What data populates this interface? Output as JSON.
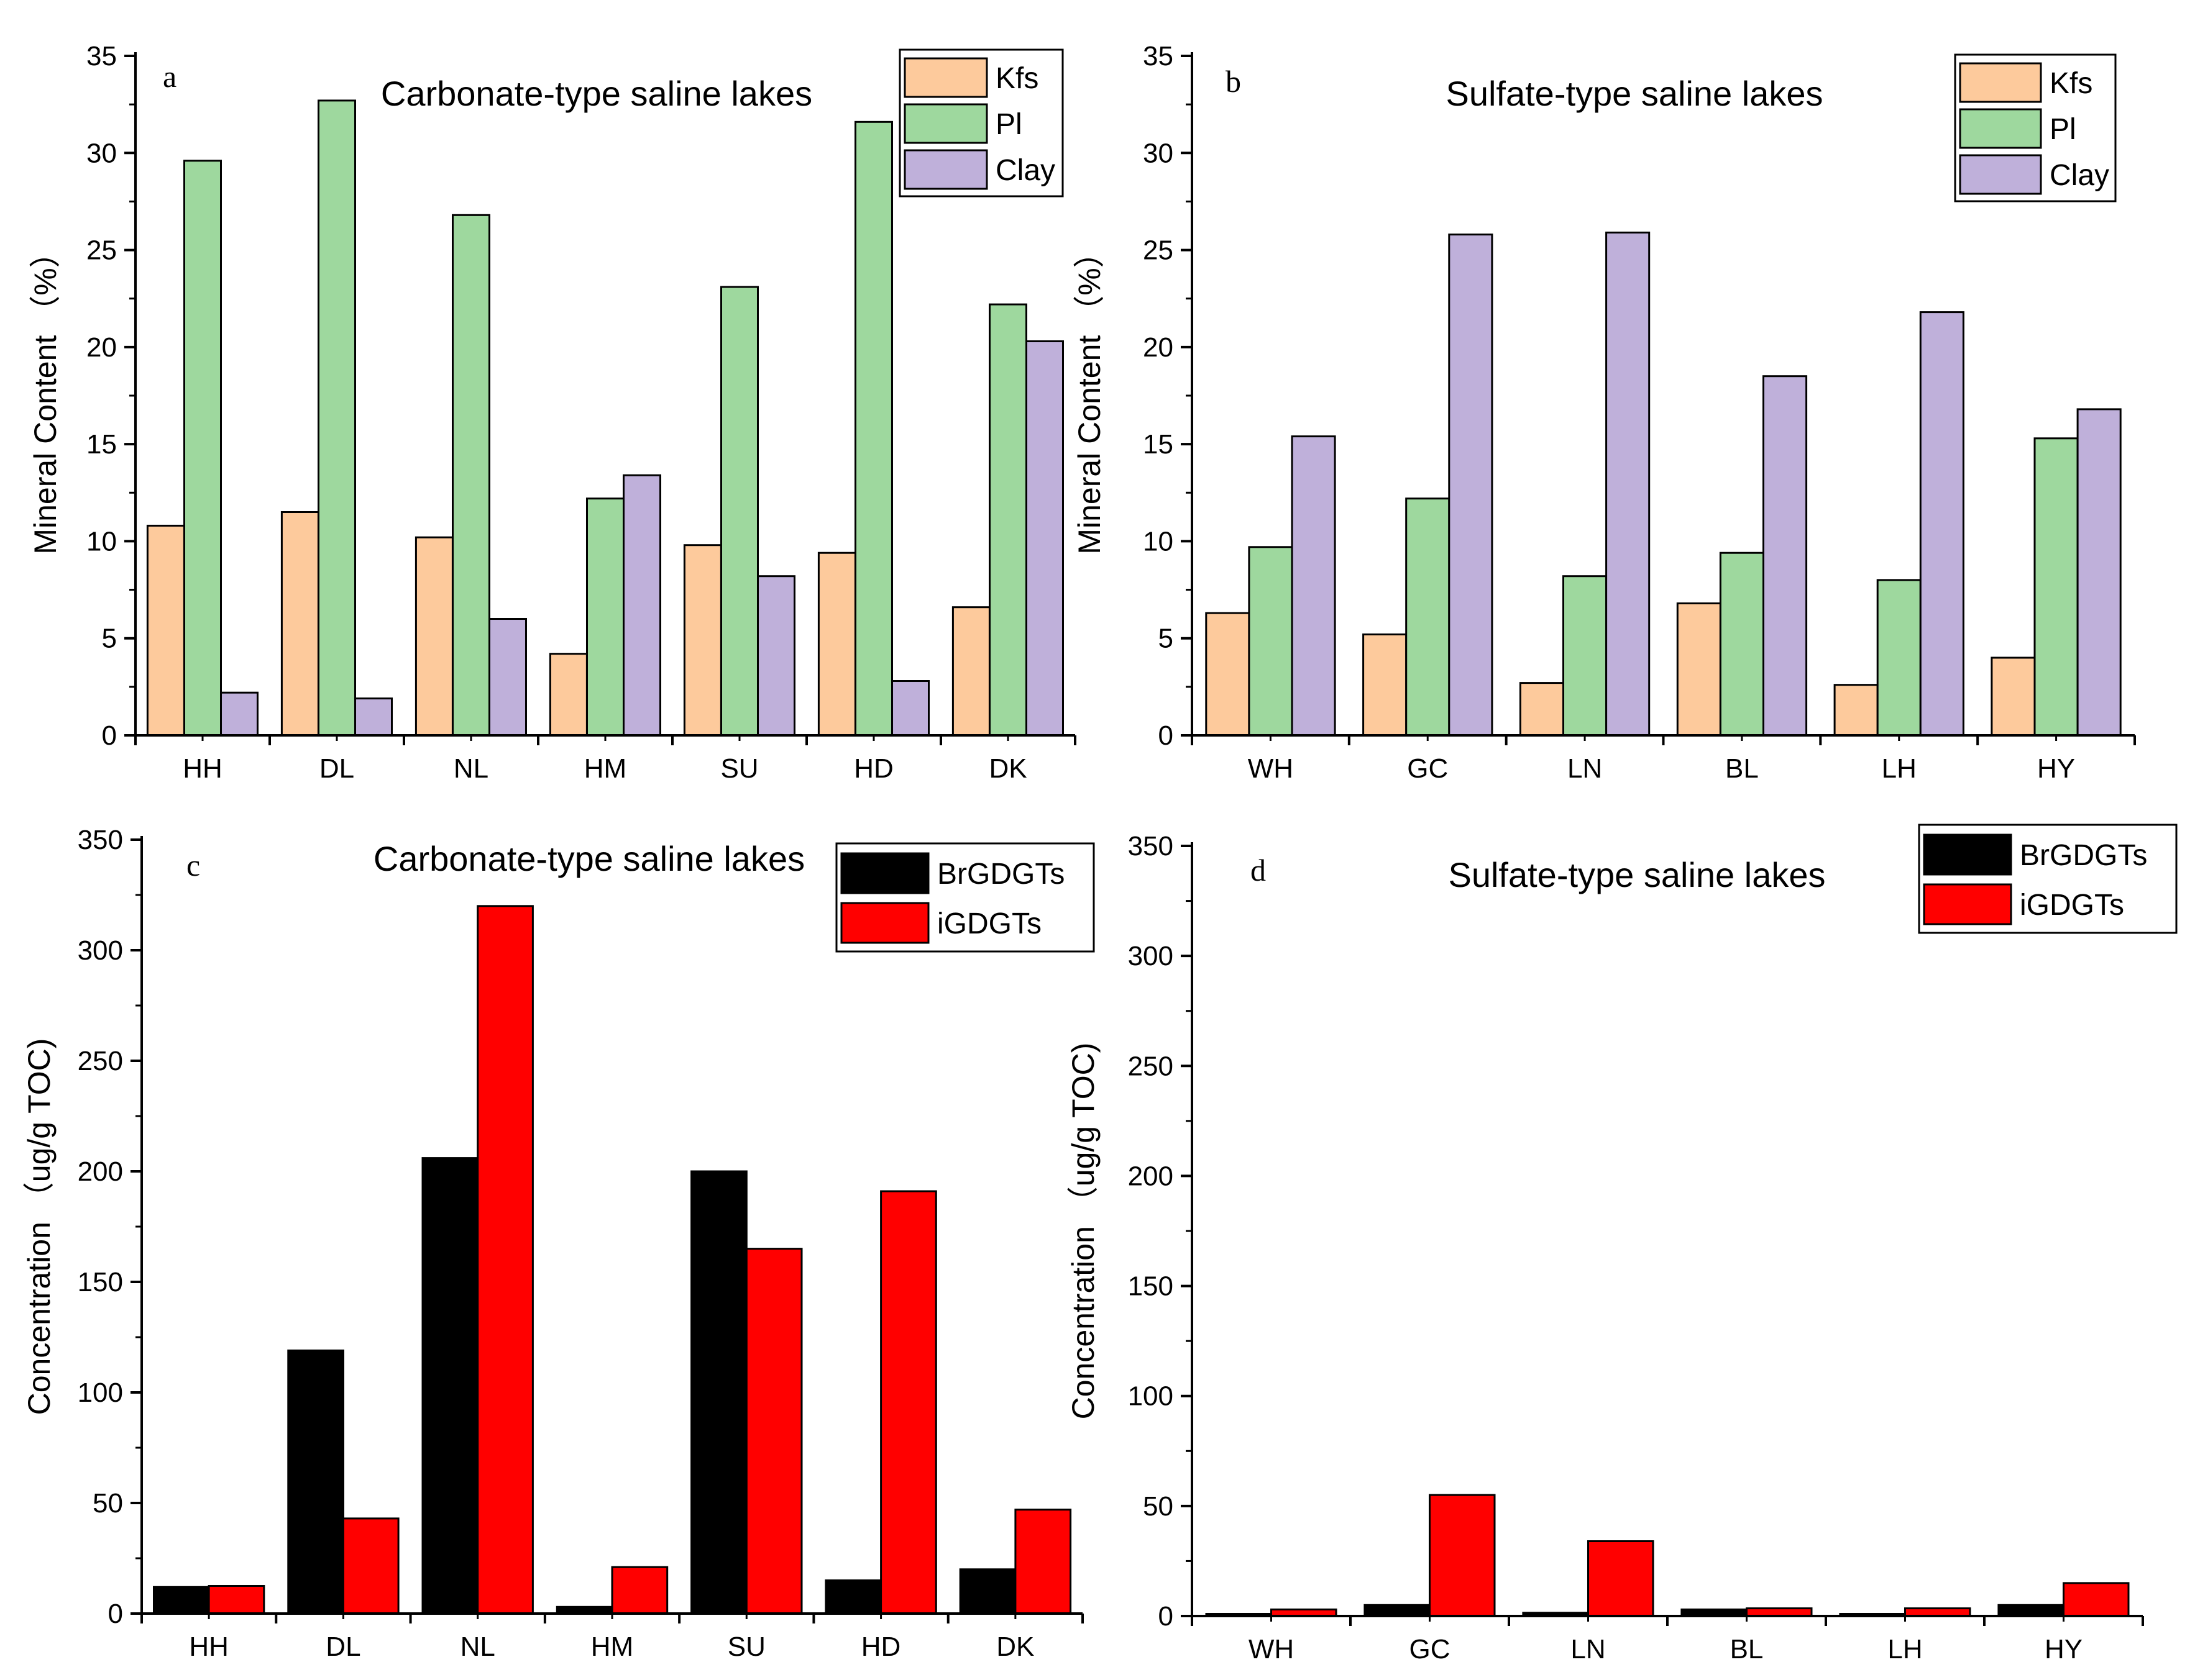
{
  "chart_data": [
    {
      "panel": "a",
      "type": "bar",
      "title": "Carbonate-type saline lakes",
      "xlabel": "",
      "ylabel": "Mineral Content （%）",
      "ylim": [
        0,
        35
      ],
      "yticks": [
        0,
        5,
        10,
        15,
        20,
        25,
        30,
        35
      ],
      "categories": [
        "HH",
        "DL",
        "NL",
        "HM",
        "SU",
        "HD",
        "DK"
      ],
      "legend_position": "top-right",
      "series": [
        {
          "name": "Kfs",
          "color": "#FDCA9C",
          "values": [
            10.8,
            11.5,
            10.2,
            4.2,
            9.8,
            9.4,
            6.6
          ]
        },
        {
          "name": "Pl",
          "color": "#9ED89E",
          "values": [
            29.6,
            32.7,
            26.8,
            12.2,
            23.1,
            31.6,
            22.2
          ]
        },
        {
          "name": "Clay",
          "color": "#BFB0DA",
          "values": [
            2.2,
            1.9,
            6.0,
            13.4,
            8.2,
            2.8,
            20.3
          ]
        }
      ]
    },
    {
      "panel": "b",
      "type": "bar",
      "title": "Sulfate-type saline lakes",
      "xlabel": "",
      "ylabel": "Mineral Content （%）",
      "ylim": [
        0,
        35
      ],
      "yticks": [
        0,
        5,
        10,
        15,
        20,
        25,
        30,
        35
      ],
      "categories": [
        "WH",
        "GC",
        "LN",
        "BL",
        "LH",
        "HY"
      ],
      "legend_position": "top-right",
      "series": [
        {
          "name": "Kfs",
          "color": "#FDCA9C",
          "values": [
            6.3,
            5.2,
            2.7,
            6.8,
            2.6,
            4.0
          ]
        },
        {
          "name": "Pl",
          "color": "#9ED89E",
          "values": [
            9.7,
            12.2,
            8.2,
            9.4,
            8.0,
            15.3
          ]
        },
        {
          "name": "Clay",
          "color": "#BFB0DA",
          "values": [
            15.4,
            25.8,
            25.9,
            18.5,
            21.8,
            16.8
          ]
        }
      ]
    },
    {
      "panel": "c",
      "type": "bar",
      "title": "Carbonate-type saline lakes",
      "xlabel": "",
      "ylabel": "Concentration （ug/g TOC)",
      "ylim": [
        0,
        350
      ],
      "yticks": [
        0,
        50,
        100,
        150,
        200,
        250,
        300,
        350
      ],
      "categories": [
        "HH",
        "DL",
        "NL",
        "HM",
        "SU",
        "HD",
        "DK"
      ],
      "legend_position": "top-right",
      "series": [
        {
          "name": "BrGDGTs",
          "color": "#000000",
          "values": [
            12,
            119,
            206,
            3,
            200,
            15,
            20
          ]
        },
        {
          "name": "iGDGTs",
          "color": "#FF0000",
          "values": [
            12.5,
            43,
            320,
            21,
            165,
            191,
            47
          ]
        }
      ]
    },
    {
      "panel": "d",
      "type": "bar",
      "title": "Sulfate-type saline lakes",
      "xlabel": "",
      "ylabel": "Concentration （ug/g TOC)",
      "ylim": [
        0,
        350
      ],
      "yticks": [
        0,
        50,
        100,
        150,
        200,
        250,
        300,
        350
      ],
      "categories": [
        "WH",
        "GC",
        "LN",
        "BL",
        "LH",
        "HY"
      ],
      "legend_position": "top-right",
      "series": [
        {
          "name": "BrGDGTs",
          "color": "#000000",
          "values": [
            1,
            5,
            1.5,
            3,
            1,
            5
          ]
        },
        {
          "name": "iGDGTs",
          "color": "#FF0000",
          "values": [
            3,
            55,
            34,
            3.5,
            3.5,
            15
          ]
        }
      ]
    }
  ]
}
